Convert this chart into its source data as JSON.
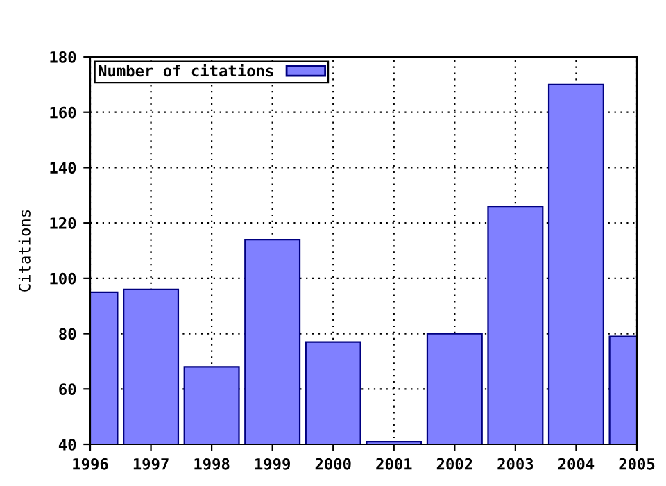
{
  "chart_data": {
    "type": "bar",
    "ylabel": "Citations",
    "x": [
      1996,
      1997,
      1998,
      1999,
      2000,
      2001,
      2002,
      2003,
      2004,
      2005
    ],
    "series": [
      {
        "name": "Number of citations",
        "color": "#8080ff",
        "values": [
          95,
          96,
          68,
          114,
          77,
          41,
          80,
          126,
          170,
          79
        ]
      }
    ],
    "xlim": [
      1996,
      2005
    ],
    "xticks": [
      1996,
      1997,
      1998,
      1999,
      2000,
      2001,
      2002,
      2003,
      2004,
      2005
    ],
    "ylim": [
      40,
      180
    ],
    "yticks": [
      40,
      60,
      80,
      100,
      120,
      140,
      160,
      180
    ],
    "grid": true,
    "legend": "top left"
  }
}
